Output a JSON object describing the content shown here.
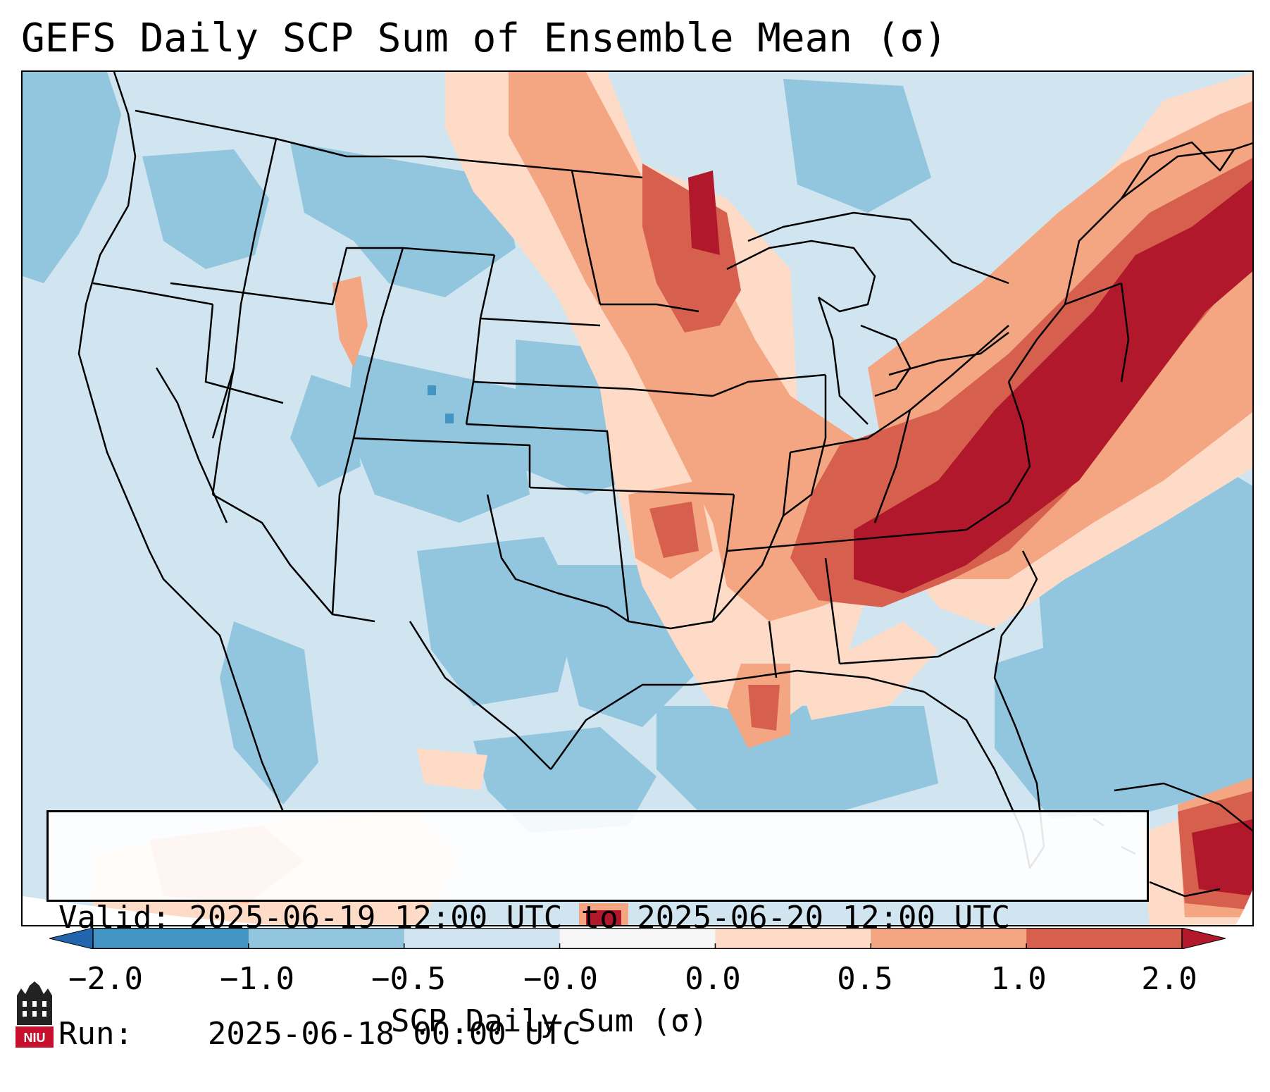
{
  "title": "GEFS Daily SCP Sum of Ensemble Mean (σ)",
  "info": {
    "valid_line": "Valid: 2025-06-19 12:00 UTC to 2025-06-20 12:00 UTC",
    "run_line": "Run:    2025-06-18 00:00 UTC"
  },
  "colorbar": {
    "label": "SCP Daily Sum (σ)",
    "tick_labels": [
      "−2.0",
      "−1.0",
      "−0.5",
      "−0.0",
      "0.0",
      "0.5",
      "1.0",
      "2.0"
    ],
    "colors": [
      "#4393c3",
      "#92c5de",
      "#d1e5f0",
      "#f7f7f7",
      "#fddbc7",
      "#f4a582",
      "#d6604d",
      "#b2182b"
    ],
    "under_color": "#2166ac",
    "over_color": "#b2182b"
  },
  "logo": {
    "text": "NIU",
    "icon": "niu-castle-icon"
  },
  "legend_colors": {
    "strong_negative": "#4393c3",
    "moderate_negative": "#92c5de",
    "weak_negative": "#d1e5f0",
    "neutral": "#f7f7f7",
    "weak_positive": "#fddbc7",
    "moderate_positive": "#f4a582",
    "strong_positive": "#d6604d",
    "extreme_positive": "#b2182b"
  }
}
